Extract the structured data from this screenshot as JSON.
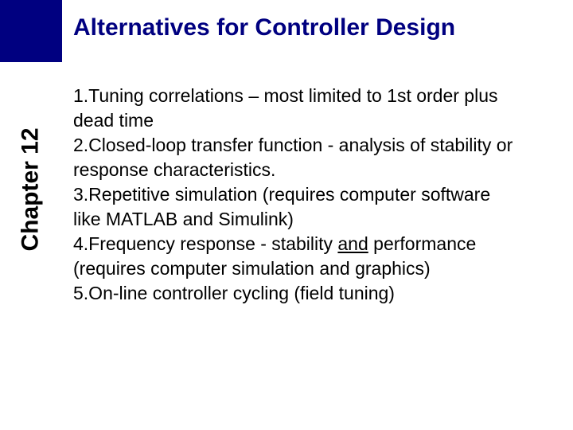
{
  "colors": {
    "accent": "#000080",
    "background": "#ffffff",
    "text": "#000000"
  },
  "sidebar": {
    "label": "Chapter 12",
    "label_fontsize": 30,
    "label_fontweight": "bold"
  },
  "title": {
    "text": "Alternatives for Controller Design",
    "fontsize": 30,
    "fontweight": "bold",
    "color": "#000080"
  },
  "body": {
    "fontsize": 23,
    "lines": {
      "l1": "1.Tuning correlations – most limited to 1st order plus",
      "l2": "dead time",
      "l3": "2.Closed-loop transfer function - analysis of stability or",
      "l4": "response characteristics.",
      "l5": "3.Repetitive simulation (requires computer software",
      "l6": "like MATLAB and Simulink)",
      "l7a": "4.Frequency response - stability ",
      "l7b": "and",
      "l7c": " performance",
      "l8": "(requires computer simulation and graphics)",
      "l9": "5.On-line controller cycling (field tuning)"
    }
  }
}
